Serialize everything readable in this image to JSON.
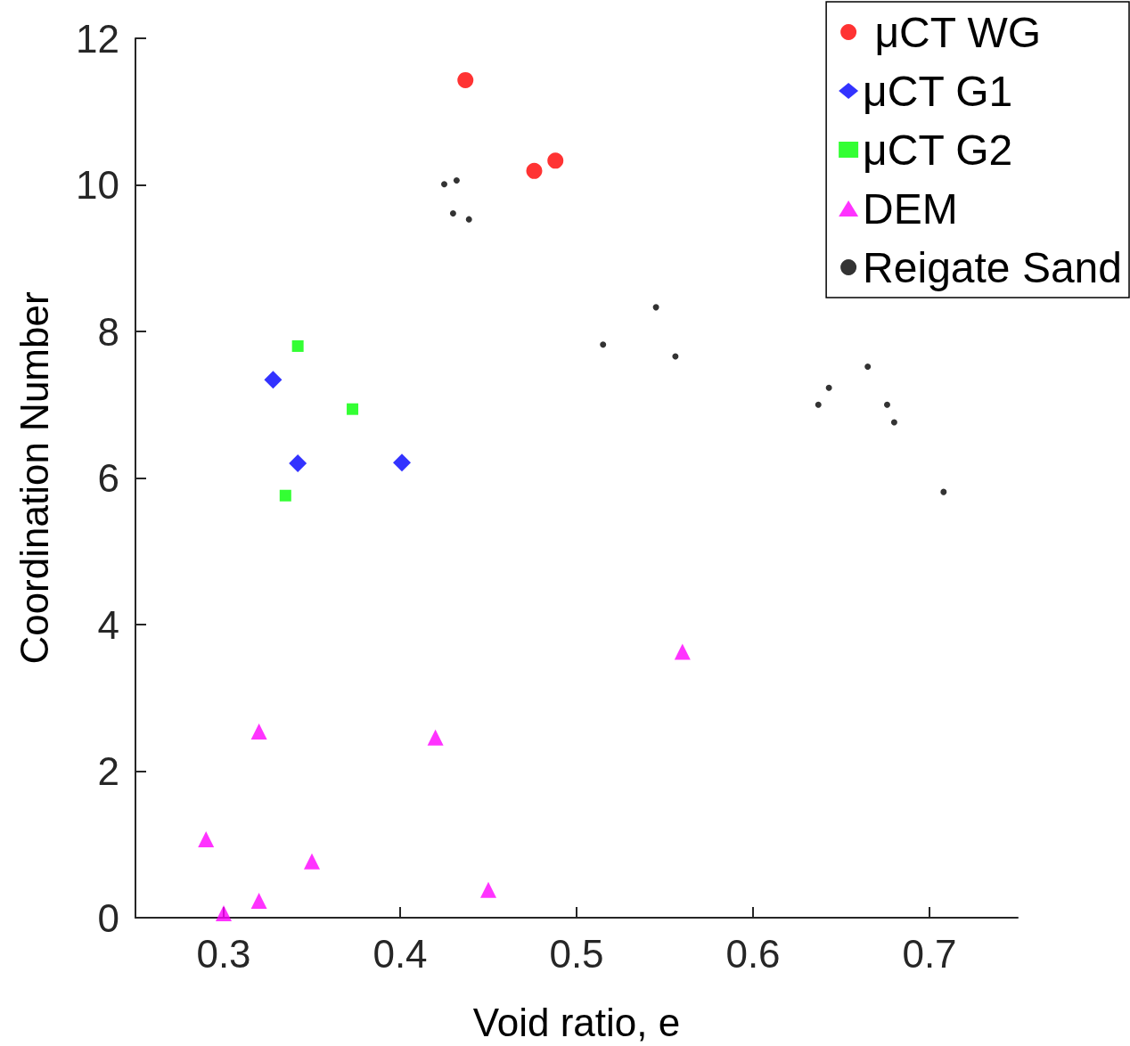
{
  "chart_data": {
    "type": "scatter",
    "xlabel": "Void ratio, e",
    "ylabel": "Coordination Number",
    "xlim": [
      0.25,
      0.75
    ],
    "xticks": [
      0.3,
      0.4,
      0.5,
      0.6,
      0.7
    ],
    "ylim": [
      0,
      12
    ],
    "yticks": [
      0,
      2,
      4,
      6,
      8,
      10,
      12
    ],
    "grid": false,
    "legend": "top right",
    "series": [
      {
        "name": " μCT WG",
        "color": "#ff0000",
        "marker": "circle",
        "x": [
          0.437,
          0.476,
          0.488
        ],
        "values": [
          11.43,
          10.19,
          10.33
        ]
      },
      {
        "name": "μCT G1",
        "color": "#0000ff",
        "marker": "diamond",
        "x": [
          0.328,
          0.342,
          0.401
        ],
        "values": [
          7.34,
          6.2,
          6.21
        ]
      },
      {
        "name": "μCT G2",
        "color": "#00ff00",
        "marker": "square",
        "x": [
          0.342,
          0.373,
          0.335
        ],
        "values": [
          7.8,
          6.94,
          5.76
        ]
      },
      {
        "name": "DEM",
        "color": "#ff00ff",
        "marker": "triangle",
        "x": [
          0.29,
          0.3,
          0.32,
          0.32,
          0.35,
          0.42,
          0.45,
          0.56
        ],
        "values": [
          1.07,
          0.06,
          0.23,
          2.54,
          0.77,
          2.46,
          0.38,
          3.63
        ]
      },
      {
        "name": "Reigate Sand",
        "color": "#000000",
        "x": [
          0.425,
          0.432,
          0.43,
          0.439,
          0.515,
          0.545,
          0.556,
          0.637,
          0.643,
          0.665,
          0.676,
          0.68,
          0.708
        ],
        "values": [
          10.01,
          10.06,
          9.61,
          9.53,
          7.82,
          8.33,
          7.66,
          7.0,
          7.23,
          7.52,
          7.0,
          6.76,
          5.81
        ]
      }
    ]
  }
}
